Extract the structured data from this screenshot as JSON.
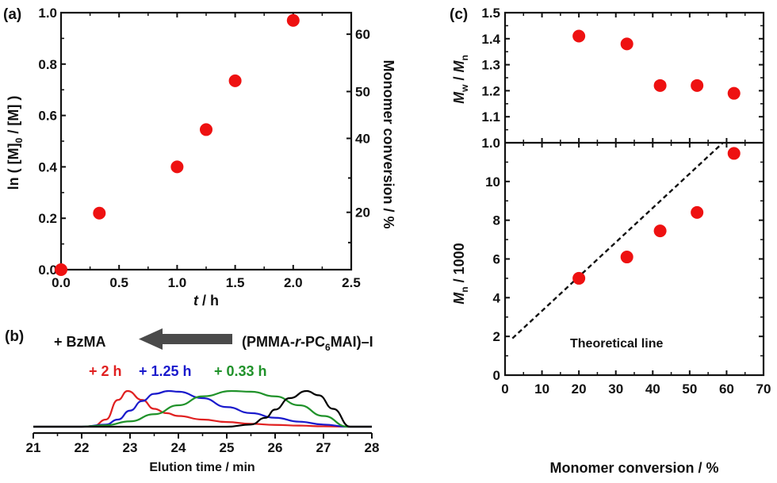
{
  "chart_data": [
    {
      "panel_label": "(a)",
      "type": "scatter",
      "xlabel": {
        "italic": "t",
        "rest": " / h"
      },
      "ylabel": {
        "pre": "ln ( [M]",
        "sub": "0",
        "post": " / [M] )"
      },
      "y2label": "Monomer conversion / %",
      "xlim": [
        0,
        2.5
      ],
      "ylim": [
        0,
        1.0
      ],
      "xticks": [
        "0.0",
        "0.5",
        "1.0",
        "1.5",
        "2.0",
        "2.5"
      ],
      "yticks": [
        "0.0",
        "0.2",
        "0.4",
        "0.6",
        "0.8",
        "1.0"
      ],
      "y2ticks": [
        "20",
        "40",
        "50",
        "60"
      ],
      "y2_scale": "conversion = 1 - exp(-ln([M]0/[M]))",
      "marker_color": "#ee1111",
      "x": [
        0,
        0.33,
        1.0,
        1.25,
        1.5,
        2.0
      ],
      "y": [
        0,
        0.22,
        0.4,
        0.545,
        0.735,
        0.97
      ]
    },
    {
      "panel_label": "(b)",
      "type": "line",
      "xlabel": "Elution time / min",
      "xlim": [
        21,
        28
      ],
      "xticks": [
        "21",
        "22",
        "23",
        "24",
        "25",
        "26",
        "27",
        "28"
      ],
      "annotation_left": "+ BzMA",
      "annotation_right": {
        "pre": "(PMMA-",
        "italic": "r",
        "mid": "-PC",
        "sub": "6",
        "post": "MAI)–I"
      },
      "arrow_color": "#4a4a4a",
      "series": [
        {
          "name": "+ 2 h",
          "color": "#e02020",
          "x": [
            21,
            22.0,
            22.25,
            22.5,
            22.75,
            22.95,
            23.25,
            23.5,
            23.75,
            24.0,
            24.5,
            25.0,
            25.5,
            26.0,
            26.5,
            27.0,
            27.5,
            28
          ],
          "y": [
            0,
            0,
            0.02,
            0.2,
            0.75,
            1.0,
            0.75,
            0.5,
            0.38,
            0.3,
            0.2,
            0.13,
            0.08,
            0.05,
            0.03,
            0.01,
            0,
            0
          ]
        },
        {
          "name": "+ 1.25 h",
          "color": "#1a1acc",
          "x": [
            21,
            22.0,
            22.5,
            22.75,
            23.0,
            23.25,
            23.5,
            23.8,
            24.0,
            24.5,
            25.0,
            25.5,
            26.0,
            26.5,
            27.0,
            27.5,
            28
          ],
          "y": [
            0,
            0,
            0.06,
            0.2,
            0.45,
            0.72,
            0.92,
            1.0,
            0.98,
            0.8,
            0.55,
            0.38,
            0.25,
            0.14,
            0.06,
            0,
            0
          ]
        },
        {
          "name": "+ 0.33 h",
          "color": "#20922a",
          "x": [
            21,
            22.0,
            22.5,
            23.0,
            23.5,
            24.0,
            24.5,
            25.1,
            25.5,
            26.0,
            26.5,
            27.0,
            27.5,
            28
          ],
          "y": [
            0,
            0,
            0.04,
            0.15,
            0.35,
            0.6,
            0.85,
            1.0,
            0.98,
            0.85,
            0.6,
            0.3,
            0,
            0
          ]
        },
        {
          "color": "#000000",
          "x": [
            21,
            25.0,
            25.5,
            25.8,
            26.0,
            26.3,
            26.65,
            26.9,
            27.2,
            27.55,
            28
          ],
          "y": [
            0,
            0,
            0.06,
            0.25,
            0.48,
            0.8,
            1.0,
            0.88,
            0.5,
            0,
            0
          ]
        }
      ]
    },
    {
      "panel_label": "(c)",
      "type": "scatter",
      "xlabel": "Monomer conversion / %",
      "xlim": [
        0,
        70
      ],
      "xticks": [
        "0",
        "10",
        "20",
        "30",
        "40",
        "50",
        "60",
        "70"
      ],
      "top": {
        "ylabel": {
          "m1": "M",
          "s1": "w",
          "mid": " / ",
          "m2": "M",
          "s2": "n"
        },
        "ylim": [
          1.0,
          1.5
        ],
        "yticks": [
          "1.0",
          "1.1",
          "1.2",
          "1.3",
          "1.4",
          "1.5"
        ],
        "x": [
          20,
          33,
          42,
          52,
          62
        ],
        "y": [
          1.41,
          1.38,
          1.22,
          1.22,
          1.19
        ]
      },
      "bottom": {
        "ylabel": {
          "m": "M",
          "s": "n",
          "post": " / 1000"
        },
        "ylim": [
          0,
          12
        ],
        "yticks": [
          "0",
          "2",
          "4",
          "6",
          "8",
          "10"
        ],
        "x": [
          20,
          33,
          42,
          52,
          62
        ],
        "y": [
          5.0,
          6.1,
          7.45,
          8.4,
          11.45
        ],
        "theoretical_line": {
          "label": "Theoretical line",
          "x": [
            2,
            59
          ],
          "y": [
            1.9,
            12
          ]
        }
      },
      "marker_color": "#ee1111"
    }
  ]
}
